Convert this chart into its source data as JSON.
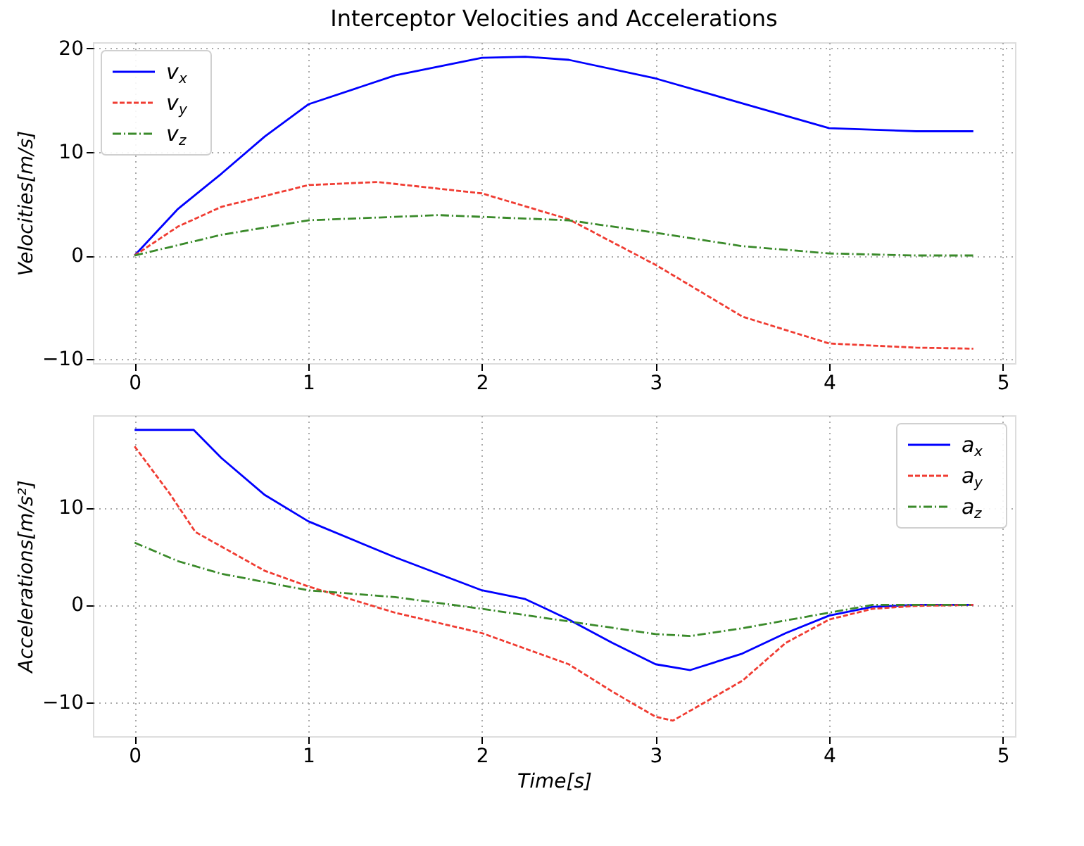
{
  "chart_data": [
    {
      "type": "line",
      "title": "Interceptor Velocities and Accelerations",
      "ylabel": "Velocities[m/s]",
      "xlim": [
        -0.24,
        5.07
      ],
      "xticks": [
        0,
        1,
        2,
        3,
        4,
        5
      ],
      "ylim": [
        -10.4,
        20.6
      ],
      "yticks": [
        -10,
        0,
        10,
        20
      ],
      "grid": true,
      "legend": "top left",
      "series": [
        {
          "name": "v$_{x}$",
          "color": "#0000ff",
          "line_style": "solid",
          "x": [
            0,
            0.25,
            0.5,
            0.75,
            1.0,
            1.5,
            2.0,
            2.25,
            2.5,
            3.0,
            3.5,
            4.0,
            4.5,
            4.83
          ],
          "values": [
            0,
            4.5,
            7.9,
            11.5,
            14.6,
            17.4,
            19.1,
            19.2,
            18.9,
            17.1,
            14.7,
            12.3,
            12.0,
            12.0
          ]
        },
        {
          "name": "v$_{y}$",
          "color": "#f03c32",
          "line_style": "dashed",
          "x": [
            0,
            0.25,
            0.5,
            1.0,
            1.4,
            2.0,
            2.5,
            3.0,
            3.5,
            4.0,
            4.5,
            4.83
          ],
          "values": [
            0,
            2.8,
            4.7,
            6.8,
            7.1,
            6.0,
            3.5,
            -0.9,
            -5.9,
            -8.5,
            -8.9,
            -9.0
          ]
        },
        {
          "name": "v$_{z}$",
          "color": "#3a8a2a",
          "line_style": "dashdot",
          "x": [
            0,
            0.5,
            1.0,
            1.75,
            2.5,
            3.0,
            3.5,
            4.0,
            4.5,
            4.83
          ],
          "values": [
            0,
            2.0,
            3.4,
            3.9,
            3.4,
            2.2,
            0.9,
            0.2,
            0.0,
            0.0
          ]
        }
      ]
    },
    {
      "type": "line",
      "xlabel": "Time[s]",
      "ylabel": "Accelerations[m/s²]",
      "xlim": [
        -0.24,
        5.07
      ],
      "xticks": [
        0,
        1,
        2,
        3,
        4,
        5
      ],
      "ylim": [
        -13.5,
        19.5
      ],
      "yticks": [
        -10,
        0,
        10
      ],
      "grid": true,
      "legend": "top right",
      "series": [
        {
          "name": "a$_{x}$",
          "color": "#0000ff",
          "line_style": "solid",
          "x": [
            0,
            0.34,
            0.5,
            0.75,
            1.0,
            1.5,
            2.0,
            2.25,
            2.5,
            2.75,
            3.0,
            3.2,
            3.5,
            3.75,
            4.0,
            4.25,
            4.5,
            4.83
          ],
          "values": [
            18.0,
            18.0,
            15.1,
            11.3,
            8.6,
            4.9,
            1.5,
            0.6,
            -1.5,
            -3.9,
            -6.1,
            -6.7,
            -5.0,
            -2.9,
            -1.1,
            -0.2,
            0.0,
            0.0
          ]
        },
        {
          "name": "a$_{y}$",
          "color": "#f03c32",
          "line_style": "dashed",
          "x": [
            0,
            0.2,
            0.35,
            0.75,
            1.0,
            1.5,
            2.0,
            2.5,
            2.75,
            3.0,
            3.1,
            3.5,
            3.75,
            4.0,
            4.25,
            4.5,
            4.83
          ],
          "values": [
            16.3,
            11.5,
            7.5,
            3.5,
            1.9,
            -0.8,
            -2.9,
            -6.1,
            -8.9,
            -11.5,
            -11.9,
            -7.8,
            -3.9,
            -1.5,
            -0.4,
            -0.1,
            0.0
          ]
        },
        {
          "name": "a$_{z}$",
          "color": "#3a8a2a",
          "line_style": "dashdot",
          "x": [
            0,
            0.25,
            0.5,
            1.0,
            1.5,
            2.0,
            2.5,
            3.0,
            3.2,
            3.5,
            4.0,
            4.25,
            4.83
          ],
          "values": [
            6.4,
            4.5,
            3.2,
            1.5,
            0.8,
            -0.4,
            -1.7,
            -3.0,
            -3.2,
            -2.4,
            -0.8,
            0.0,
            0.0
          ]
        }
      ]
    }
  ]
}
